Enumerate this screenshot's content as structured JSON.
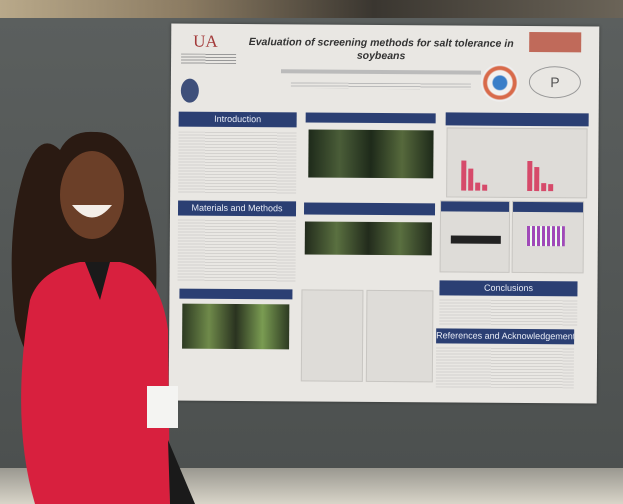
{
  "poster": {
    "title": "Evaluation of screening methods for salt tolerance in soybeans",
    "logo_text": "UA",
    "sections": {
      "introduction": "Introduction",
      "materials_methods": "Materials and Methods",
      "conclusions": "Conclusions",
      "references": "References and Acknowledgements"
    }
  },
  "colors": {
    "header_blue": "#2b3f73",
    "jacket_red": "#d8203e",
    "board_gray": "#555958"
  }
}
